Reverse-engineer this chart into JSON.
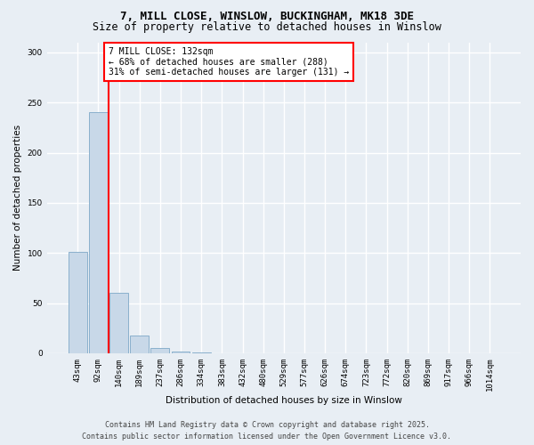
{
  "title_line1": "7, MILL CLOSE, WINSLOW, BUCKINGHAM, MK18 3DE",
  "title_line2": "Size of property relative to detached houses in Winslow",
  "xlabel": "Distribution of detached houses by size in Winslow",
  "ylabel": "Number of detached properties",
  "bin_labels": [
    "43sqm",
    "92sqm",
    "140sqm",
    "189sqm",
    "237sqm",
    "286sqm",
    "334sqm",
    "383sqm",
    "432sqm",
    "480sqm",
    "529sqm",
    "577sqm",
    "626sqm",
    "674sqm",
    "723sqm",
    "772sqm",
    "820sqm",
    "869sqm",
    "917sqm",
    "966sqm",
    "1014sqm"
  ],
  "bar_heights": [
    101,
    240,
    60,
    18,
    5,
    2,
    1,
    0,
    0,
    0,
    0,
    0,
    0,
    0,
    0,
    0,
    0,
    0,
    0,
    0,
    0
  ],
  "bar_color": "#c8d8e8",
  "bar_edge_color": "#8ab0cc",
  "red_line_x": 1.5,
  "annotation_text": "7 MILL CLOSE: 132sqm\n← 68% of detached houses are smaller (288)\n31% of semi-detached houses are larger (131) →",
  "annotation_box_color": "white",
  "annotation_box_edge_color": "red",
  "ylim": [
    0,
    310
  ],
  "yticks": [
    0,
    50,
    100,
    150,
    200,
    250,
    300
  ],
  "background_color": "#e8eef4",
  "grid_color": "white",
  "footer_line1": "Contains HM Land Registry data © Crown copyright and database right 2025.",
  "footer_line2": "Contains public sector information licensed under the Open Government Licence v3.0.",
  "title_fontsize": 9,
  "subtitle_fontsize": 8.5,
  "axis_label_fontsize": 7.5,
  "tick_fontsize": 6.5,
  "annotation_fontsize": 7,
  "footer_fontsize": 6
}
